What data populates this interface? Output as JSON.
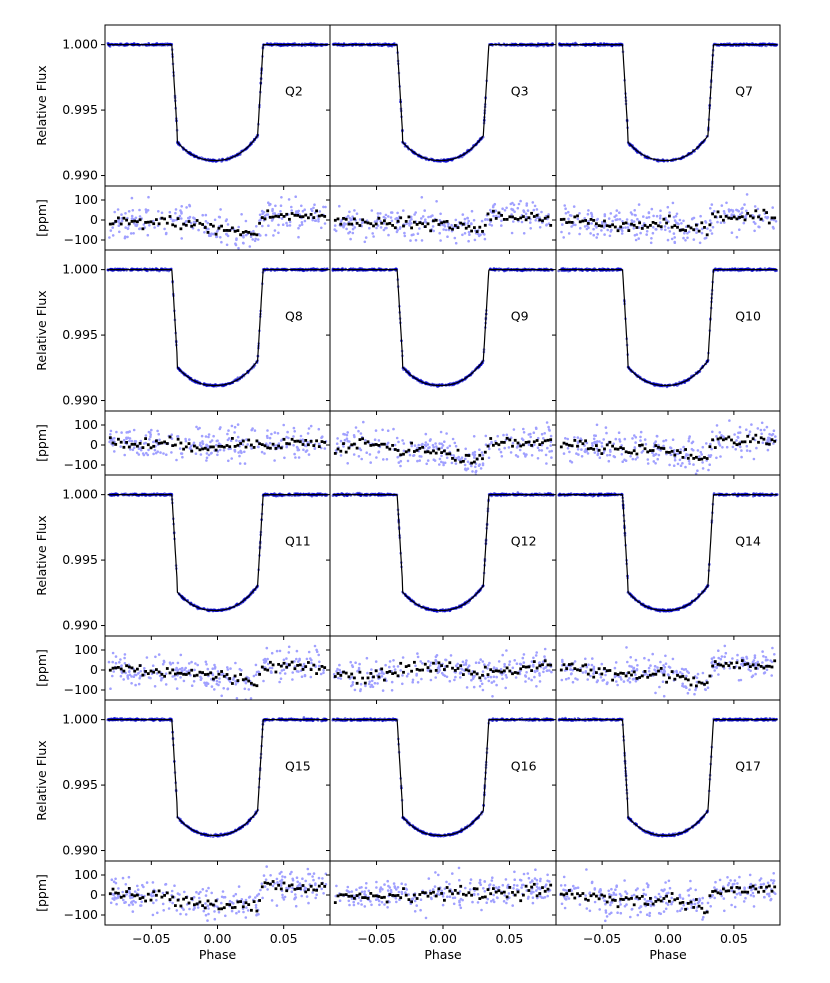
{
  "chart_data": {
    "type": "scatter",
    "layout": "4 rows x 3 columns of transit light-curve panels, each with a residual panel below",
    "xlabel": "Phase",
    "xlim": [
      -0.085,
      0.085
    ],
    "x_ticks": [
      -0.05,
      0.0,
      0.05
    ],
    "x_tick_labels": [
      "−0.05",
      "0.00",
      "0.05"
    ],
    "flux_panel": {
      "ylabel": "Relative Flux",
      "ylim": [
        0.9892,
        1.0015
      ],
      "y_ticks": [
        1.0,
        0.995,
        0.99
      ],
      "y_tick_labels": [
        "1.000",
        "0.995",
        "0.990"
      ]
    },
    "residual_panel": {
      "ylabel": "[ppm]",
      "ylim": [
        -150,
        170
      ],
      "y_ticks": [
        100,
        0,
        -100
      ],
      "y_tick_labels": [
        "100",
        "0",
        "−100"
      ]
    },
    "transit_model": {
      "baseline": 1.0,
      "min_flux": 0.99115,
      "min_phase": -0.002,
      "contact_1": -0.0345,
      "contact_2": -0.0305,
      "contact_3": 0.0305,
      "contact_4": 0.0345,
      "flux_at_contact_2": 0.99335
    },
    "colors": {
      "data_points": "#0000cc",
      "model_line": "#000000",
      "residual_points": "#a0a0ff",
      "binned_residuals": "#000000"
    },
    "quarters": [
      {
        "label": "Q2",
        "residual_trend": [
          [
            -0.08,
            -15
          ],
          [
            -0.03,
            -10
          ],
          [
            0.0,
            -45
          ],
          [
            0.03,
            -70
          ],
          [
            0.034,
            20
          ],
          [
            0.08,
            20
          ]
        ]
      },
      {
        "label": "Q3",
        "residual_trend": [
          [
            -0.08,
            -5
          ],
          [
            -0.03,
            -25
          ],
          [
            0.0,
            -15
          ],
          [
            0.03,
            -55
          ],
          [
            0.034,
            20
          ],
          [
            0.08,
            10
          ]
        ]
      },
      {
        "label": "Q7",
        "residual_trend": [
          [
            -0.08,
            0
          ],
          [
            -0.03,
            -25
          ],
          [
            0.0,
            -20
          ],
          [
            0.03,
            -55
          ],
          [
            0.034,
            20
          ],
          [
            0.08,
            10
          ]
        ]
      },
      {
        "label": "Q8",
        "residual_trend": [
          [
            -0.08,
            10
          ],
          [
            -0.03,
            0
          ],
          [
            0.0,
            -5
          ],
          [
            0.03,
            10
          ],
          [
            0.08,
            10
          ]
        ]
      },
      {
        "label": "Q9",
        "residual_trend": [
          [
            -0.08,
            -40
          ],
          [
            -0.06,
            20
          ],
          [
            -0.03,
            -20
          ],
          [
            0.0,
            -40
          ],
          [
            0.03,
            -80
          ],
          [
            0.034,
            10
          ],
          [
            0.08,
            20
          ]
        ]
      },
      {
        "label": "Q10",
        "residual_trend": [
          [
            -0.08,
            10
          ],
          [
            -0.03,
            -20
          ],
          [
            0.0,
            -25
          ],
          [
            0.03,
            -70
          ],
          [
            0.034,
            20
          ],
          [
            0.08,
            30
          ]
        ]
      },
      {
        "label": "Q11",
        "residual_trend": [
          [
            -0.08,
            10
          ],
          [
            -0.03,
            -10
          ],
          [
            0.0,
            -30
          ],
          [
            0.03,
            -60
          ],
          [
            0.034,
            20
          ],
          [
            0.08,
            20
          ]
        ]
      },
      {
        "label": "Q12",
        "residual_trend": [
          [
            -0.08,
            -25
          ],
          [
            -0.05,
            -40
          ],
          [
            -0.03,
            10
          ],
          [
            0.0,
            20
          ],
          [
            0.03,
            -20
          ],
          [
            0.06,
            10
          ],
          [
            0.08,
            30
          ]
        ]
      },
      {
        "label": "Q14",
        "residual_trend": [
          [
            -0.08,
            10
          ],
          [
            -0.03,
            -20
          ],
          [
            0.0,
            -20
          ],
          [
            0.03,
            -70
          ],
          [
            0.034,
            30
          ],
          [
            0.08,
            30
          ]
        ]
      },
      {
        "label": "Q15",
        "residual_trend": [
          [
            -0.08,
            10
          ],
          [
            -0.03,
            -20
          ],
          [
            0.0,
            -50
          ],
          [
            0.03,
            -50
          ],
          [
            0.034,
            40
          ],
          [
            0.08,
            30
          ]
        ]
      },
      {
        "label": "Q16",
        "residual_trend": [
          [
            -0.08,
            -10
          ],
          [
            -0.03,
            0
          ],
          [
            0.0,
            10
          ],
          [
            0.03,
            10
          ],
          [
            0.08,
            30
          ]
        ]
      },
      {
        "label": "Q17",
        "residual_trend": [
          [
            -0.08,
            10
          ],
          [
            -0.03,
            -30
          ],
          [
            0.0,
            -20
          ],
          [
            0.03,
            -60
          ],
          [
            0.034,
            20
          ],
          [
            0.08,
            30
          ]
        ]
      }
    ]
  }
}
